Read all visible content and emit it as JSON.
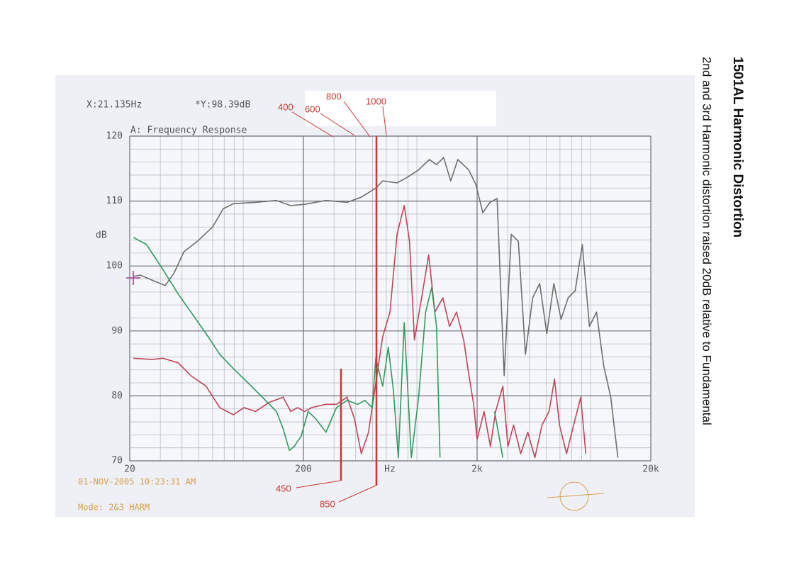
{
  "chart_data": {
    "type": "line",
    "title": "1501AL Harmonic Distortion",
    "subtitle": "2nd and 3rd Harmonic distortion raised 20dB relative to Fundamental",
    "cursor_readout": [
      "X:21.135Hz",
      "*Y:98.39dB"
    ],
    "plot_label": "A: Frequency Response",
    "timestamp": "01-NOV-2005 10:23:31 AM",
    "mode": "Mode: 2&3 HARM",
    "xlabel": "Hz",
    "ylabel": "dB",
    "xscale": "log",
    "xlim": [
      20,
      20000
    ],
    "ylim": [
      70,
      120
    ],
    "xticks": [
      20,
      200,
      {
        "value": 2000,
        "label": "2k"
      },
      {
        "value": 20000,
        "label": "20k"
      }
    ],
    "yticks": [
      70,
      80,
      90,
      100,
      110,
      120
    ],
    "xminorticks": [
      30,
      40,
      50,
      60,
      70,
      80,
      90,
      300,
      400,
      500,
      600,
      700,
      800,
      900,
      3000,
      4000,
      5000,
      6000,
      7000,
      8000,
      9000
    ],
    "yminorticks": [
      72,
      74,
      76,
      78,
      82,
      84,
      86,
      88,
      92,
      94,
      96,
      98,
      102,
      104,
      106,
      108,
      112,
      114,
      116,
      118
    ],
    "grid": true,
    "annotations": [
      {
        "text": "400"
      },
      {
        "text": "600"
      },
      {
        "text": "800"
      },
      {
        "text": "1000"
      },
      {
        "text": "450"
      },
      {
        "text": "850"
      }
    ],
    "series": [
      {
        "color": "#6e6e6e",
        "x": [
          21,
          23,
          27,
          32,
          36,
          41,
          49,
          60,
          69,
          79,
          106,
          140,
          169,
          203,
          270,
          357,
          431,
          522,
          572,
          692,
          798,
          921,
          1063,
          1168,
          1283,
          1410,
          1549,
          1788,
          1964,
          2158,
          2371,
          2606,
          2863,
          3146,
          3457,
          3798,
          4173,
          4586,
          5039,
          5537,
          6084,
          6685,
          7345,
          8071,
          8868,
          9744,
          10707,
          11765,
          12927,
          17140,
          17970,
          18840
        ],
        "values": [
          98.4,
          98.6,
          97.8,
          97.0,
          98.9,
          102.2,
          103.8,
          106.0,
          108.8,
          109.6,
          109.8,
          110.1,
          109.3,
          109.5,
          110.1,
          109.8,
          110.6,
          112.0,
          113.1,
          112.8,
          113.7,
          114.8,
          116.4,
          115.6,
          116.7,
          113.1,
          116.4,
          114.8,
          112.6,
          108.2,
          109.8,
          110.4,
          83.1,
          104.9,
          103.8,
          86.4,
          95.1,
          97.3,
          89.6,
          97.3,
          91.8,
          95.1,
          96.2,
          103.3,
          90.7,
          92.9,
          84.7,
          79.8,
          70.5,
          null,
          74.9,
          null
        ]
      },
      {
        "color": "#c0445a",
        "x": [
          21,
          27,
          31,
          38,
          45,
          55,
          66,
          79,
          91,
          106,
          127,
          153,
          169,
          185,
          203,
          223,
          270,
          310,
          357,
          393,
          431,
          474,
          522,
          572,
          630,
          692,
          761,
          817,
          871,
          958,
          1053,
          1142,
          1270,
          1388,
          1523,
          1674,
          1770,
          1910,
          2000,
          2193,
          2387,
          2555,
          2812,
          3006,
          3246,
          3565,
          3916,
          4302,
          4725,
          5190,
          5581,
          5962,
          6548,
          7192,
          7900,
          8448
        ],
        "values": [
          85.8,
          85.6,
          85.8,
          85.1,
          83.1,
          81.5,
          78.2,
          77.1,
          78.2,
          77.6,
          79.0,
          79.8,
          77.6,
          78.2,
          77.6,
          78.2,
          78.7,
          78.7,
          79.8,
          76.5,
          71.1,
          74.4,
          82.0,
          89.1,
          92.9,
          104.9,
          109.3,
          103.8,
          88.6,
          95.1,
          101.7,
          92.9,
          95.1,
          90.7,
          92.9,
          88.6,
          84.2,
          78.7,
          73.3,
          77.6,
          72.2,
          77.6,
          81.5,
          72.2,
          75.5,
          71.1,
          74.4,
          70.5,
          75.5,
          77.6,
          82.6,
          75.5,
          71.1,
          75.5,
          79.8,
          71.1
        ]
      },
      {
        "color": "#2f9a5e",
        "x": [
          21,
          25,
          31,
          38,
          45,
          55,
          66,
          79,
          96,
          116,
          140,
          153,
          166,
          177,
          194,
          213,
          235,
          270,
          310,
          357,
          411,
          452,
          497,
          522,
          572,
          616,
          659,
          704,
          761,
          836,
          921,
          1011,
          1095,
          1168,
          1223,
          2371,
          2521,
          2812
        ],
        "values": [
          104.4,
          103.3,
          99.5,
          95.7,
          92.9,
          89.6,
          86.4,
          84.2,
          82.0,
          79.8,
          77.6,
          74.9,
          71.6,
          72.2,
          73.8,
          77.6,
          76.5,
          74.4,
          78.2,
          79.3,
          78.7,
          79.3,
          78.2,
          85.8,
          81.5,
          87.5,
          80.9,
          70.5,
          91.3,
          70.5,
          79.8,
          92.9,
          96.7,
          90.7,
          70.5,
          null,
          77.6,
          70.5
        ]
      }
    ]
  }
}
